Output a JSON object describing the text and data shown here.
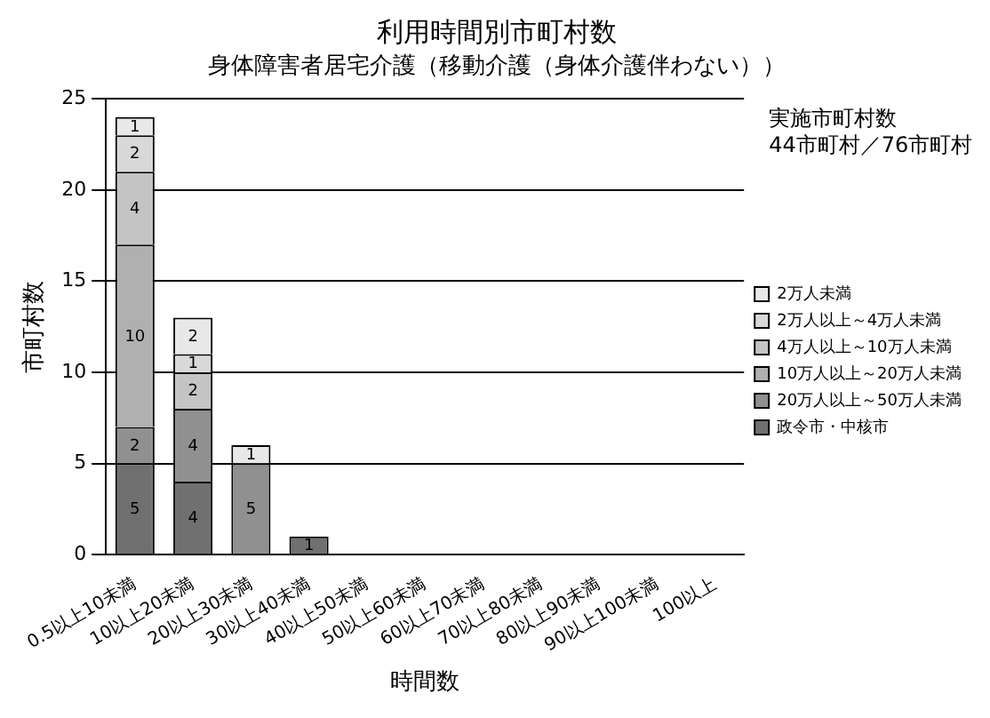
{
  "chart_data": {
    "type": "bar",
    "title": "利用時間別市町村数",
    "subtitle": "身体障害者居宅介護（移動介護（身体介護伴わない））",
    "xlabel": "時間数",
    "ylabel": "市町村数",
    "categories": [
      "0.5以上10未満",
      "10以上20未満",
      "20以上30未満",
      "30以上40未満",
      "40以上50未満",
      "50以上60未満",
      "60以上70未満",
      "70以上80未満",
      "80以上90未満",
      "90以上100未満",
      "100以上"
    ],
    "series": [
      {
        "name": "政令市・中核市",
        "color": "#707070",
        "values": [
          5,
          4,
          0,
          1,
          0,
          0,
          0,
          0,
          0,
          0,
          0
        ],
        "value_labels": [
          "5",
          "4",
          null,
          "1",
          null,
          null,
          null,
          null,
          null,
          null,
          null
        ]
      },
      {
        "name": "20万人以上～50万人未満",
        "color": "#909090",
        "values": [
          2,
          4,
          5,
          0,
          0,
          0,
          0,
          0,
          0,
          0,
          0
        ],
        "value_labels": [
          "2",
          "4",
          "5",
          null,
          null,
          null,
          null,
          null,
          null,
          null,
          null
        ]
      },
      {
        "name": "10万人以上～20万人未満",
        "color": "#b0b0b0",
        "values": [
          10,
          0,
          0,
          0,
          0,
          0,
          0,
          0,
          0,
          0,
          0
        ],
        "value_labels": [
          "10",
          null,
          null,
          null,
          null,
          null,
          null,
          null,
          null,
          null,
          null
        ]
      },
      {
        "name": "4万人以上～10万人未満",
        "color": "#c4c4c4",
        "values": [
          4,
          2,
          0,
          0,
          0,
          0,
          0,
          0,
          0,
          0,
          0
        ],
        "value_labels": [
          "4",
          "2",
          null,
          null,
          null,
          null,
          null,
          null,
          null,
          null,
          null
        ]
      },
      {
        "name": "2万人以上～4万人未満",
        "color": "#d8d8d8",
        "values": [
          2,
          1,
          0,
          0,
          0,
          0,
          0,
          0,
          0,
          0,
          0
        ],
        "value_labels": [
          "2",
          "1",
          null,
          null,
          null,
          null,
          null,
          null,
          null,
          null,
          null
        ]
      },
      {
        "name": "2万人未満",
        "color": "#e8e8e8",
        "values": [
          1,
          2,
          1,
          0,
          0,
          0,
          0,
          0,
          0,
          0,
          0
        ],
        "value_labels": [
          "1",
          "2",
          "1",
          null,
          null,
          null,
          null,
          null,
          null,
          null,
          null
        ]
      }
    ],
    "stacked": true,
    "ylim": [
      0,
      25
    ],
    "yticks": [
      0,
      5,
      10,
      15,
      20,
      25
    ],
    "grid": "y",
    "legend": "right",
    "annotations": [
      "実施市町村数",
      "44市町村／76市町村"
    ]
  }
}
